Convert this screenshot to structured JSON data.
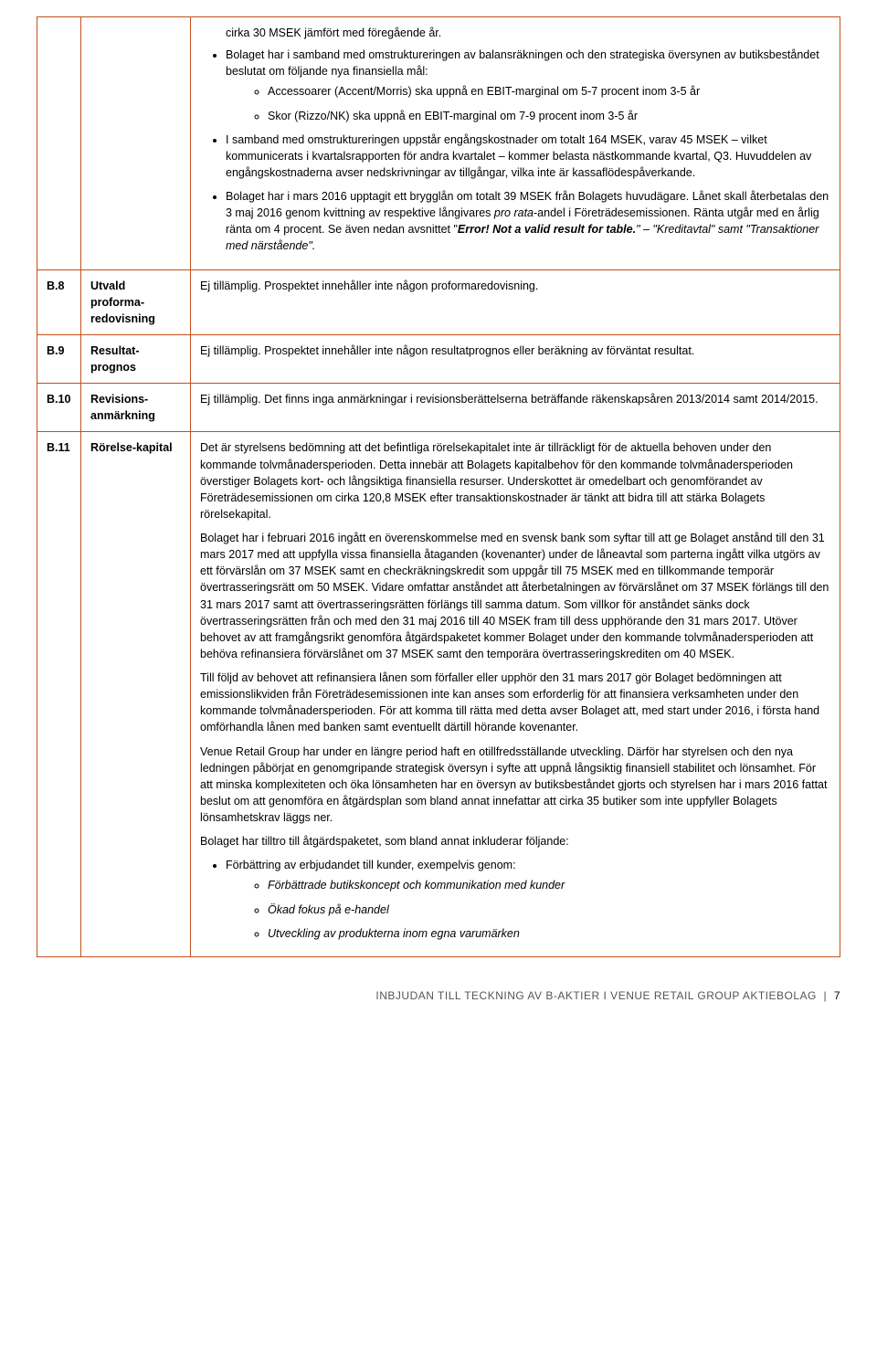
{
  "row0": {
    "intro": "cirka 30 MSEK jämfört med föregående år.",
    "b1_lead": "Bolaget har i samband med omstruktureringen av balansräkningen och den strategiska översynen av butiksbeståndet beslutat om följande nya finansiella mål:",
    "sub1": "Accessoarer (Accent/Morris) ska uppnå en EBIT-marginal om 5-7 procent inom 3-5 år",
    "sub2": "Skor (Rizzo/NK) ska uppnå en EBIT-marginal om 7-9 procent inom 3-5 år",
    "b2": "I samband med omstruktureringen uppstår engångskostnader om totalt 164 MSEK, varav 45 MSEK – vilket kommunicerats i kvartalsrapporten för andra kvartalet – kommer belasta nästkommande kvartal, Q3. Huvuddelen av engångskostnaderna avser nedskrivningar av tillgångar, vilka inte är kassaflödespåverkande.",
    "b3_before": "Bolaget har i mars 2016 upptagit ett brygglån om totalt 39 MSEK från Bolagets huvudägare. Lånet skall återbetalas den 3 maj 2016 genom kvittning av respektive långivares ",
    "b3_prorata": "pro rata",
    "b3_mid": "-andel i Företrädesemissionen. Ränta utgår med en årlig ränta om 4 procent. Se även nedan avsnittet \"",
    "b3_error": "Error! Not a valid result for table.",
    "b3_after": "\" – \"Kreditavtal\" samt \"Transaktioner med närstående\"."
  },
  "r8": {
    "id": "B.8",
    "label": "Utvald proforma-redovisning",
    "text": "Ej tillämplig. Prospektet innehåller inte någon proformaredovisning."
  },
  "r9": {
    "id": "B.9",
    "label": "Resultat-prognos",
    "text": "Ej tillämplig. Prospektet innehåller inte någon resultatprognos eller beräkning av förväntat resultat."
  },
  "r10": {
    "id": "B.10",
    "label": "Revisions-anmärkning",
    "text": "Ej tillämplig. Det finns inga anmärkningar i revisionsberättelserna beträffande räkenskapsåren 2013/2014 samt 2014/2015."
  },
  "r11": {
    "id": "B.11",
    "label": "Rörelse-kapital",
    "p1": "Det är styrelsens bedömning att det befintliga rörelsekapitalet inte är tillräckligt för de aktuella behoven under den kommande tolvmånadersperioden. Detta innebär att Bolagets kapitalbehov för den kommande tolvmånadersperioden överstiger Bolagets kort- och långsiktiga finansiella resurser. Underskottet är omedelbart och genomförandet av Företrädesemissionen om cirka 120,8 MSEK efter transaktionskostnader är tänkt att bidra till att stärka Bolagets rörelsekapital.",
    "p2": "Bolaget har i februari 2016 ingått en överenskommelse med en svensk bank som syftar till att ge Bolaget anstånd till den 31 mars 2017 med att uppfylla vissa finansiella åtaganden (kovenanter) under de låneavtal som parterna ingått vilka utgörs av ett förvärslån om 37 MSEK samt en checkräkningskredit som uppgår till 75 MSEK med en tillkommande temporär övertrasseringsrätt om 50 MSEK. Vidare omfattar anståndet att återbetalningen av förvärslånet om 37 MSEK förlängs till den 31 mars 2017 samt att övertrasseringsrätten förlängs till samma datum. Som villkor för anståndet sänks dock övertrasseringsrätten från och med den 31 maj 2016 till 40 MSEK fram till dess upphörande den 31 mars 2017. Utöver behovet av att framgångsrikt genomföra åtgärdspaketet kommer Bolaget under den kommande tolvmånadersperioden att behöva refinansiera förvärslånet om 37 MSEK samt den temporära övertrasseringskrediten om 40 MSEK.",
    "p3": "Till följd av behovet att refinansiera lånen som förfaller eller upphör den 31 mars 2017 gör Bolaget bedömningen att emissionslikviden från Företrädesemissionen inte kan anses som erforderlig för att finansiera verksamheten under den kommande tolvmånadersperioden. För att komma till rätta med detta avser Bolaget att, med start under 2016, i första hand omförhandla lånen med banken samt eventuellt därtill hörande kovenanter.",
    "p4": "Venue Retail Group har under en längre period haft en otillfredsställande utveckling. Därför har styrelsen och den nya ledningen påbörjat en genomgripande strategisk översyn i syfte att uppnå långsiktig finansiell stabilitet och lönsamhet. För att minska komplexiteten och öka lönsamheten har en översyn av butiksbeståndet gjorts och styrelsen har i mars 2016 fattat beslut om att genomföra en åtgärdsplan som bland annat innefattar att cirka 35 butiker som inte uppfyller Bolagets lönsamhetskrav läggs ner.",
    "p5": "Bolaget har tilltro till åtgärdspaketet, som bland annat inkluderar följande:",
    "b1": "Förbättring av erbjudandet till kunder, exempelvis genom:",
    "s1": "Förbättrade butikskoncept och kommunikation med kunder",
    "s2": "Ökad fokus på e-handel",
    "s3": "Utveckling av produkterna inom egna varumärken"
  },
  "footer": {
    "text": "INBJUDAN TILL TECKNING AV B-AKTIER I VENUE RETAIL GROUP AKTIEBOLAG",
    "page": "7"
  }
}
